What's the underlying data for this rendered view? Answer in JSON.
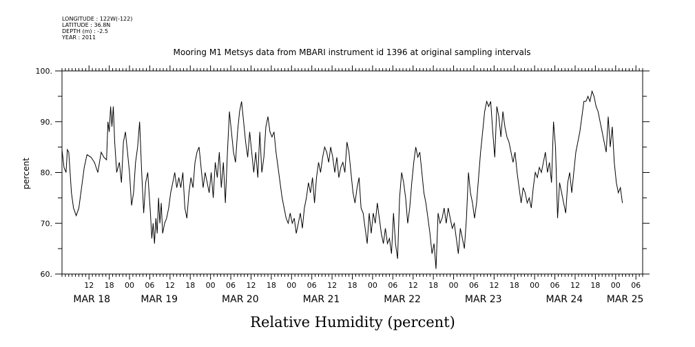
{
  "header": {
    "lines": [
      "LONGITUDE : 122W(-122)",
      "LATITUDE : 36.8N",
      "DEPTH (m) : -2.5",
      "YEAR : 2011"
    ]
  },
  "chart_data": {
    "type": "line",
    "title": "Mooring M1 Metsys data from MBARI instrument id 1396 at original sampling intervals",
    "xlabel": "Relative Humidity (percent)",
    "ylabel": "percent",
    "ylim": [
      60,
      100
    ],
    "yticks": [
      60,
      70,
      80,
      90,
      100
    ],
    "ytick_labels": [
      "60.",
      "70.",
      "80.",
      "90.",
      "100."
    ],
    "xlim_hours": [
      0,
      172
    ],
    "hour_ticks": [
      {
        "h": 8,
        "label": "12"
      },
      {
        "h": 14,
        "label": "18"
      },
      {
        "h": 20,
        "label": "00"
      },
      {
        "h": 26,
        "label": "06"
      },
      {
        "h": 32,
        "label": "12"
      },
      {
        "h": 38,
        "label": "18"
      },
      {
        "h": 44,
        "label": "00"
      },
      {
        "h": 50,
        "label": "06"
      },
      {
        "h": 56,
        "label": "12"
      },
      {
        "h": 62,
        "label": "18"
      },
      {
        "h": 68,
        "label": "00"
      },
      {
        "h": 74,
        "label": "06"
      },
      {
        "h": 80,
        "label": "12"
      },
      {
        "h": 86,
        "label": "18"
      },
      {
        "h": 92,
        "label": "00"
      },
      {
        "h": 98,
        "label": "06"
      },
      {
        "h": 104,
        "label": "12"
      },
      {
        "h": 110,
        "label": "18"
      },
      {
        "h": 116,
        "label": "00"
      },
      {
        "h": 122,
        "label": "06"
      },
      {
        "h": 128,
        "label": "12"
      },
      {
        "h": 134,
        "label": "18"
      },
      {
        "h": 140,
        "label": "00"
      },
      {
        "h": 146,
        "label": "06"
      },
      {
        "h": 152,
        "label": "12"
      },
      {
        "h": 158,
        "label": "18"
      },
      {
        "h": 164,
        "label": "00"
      },
      {
        "h": 170,
        "label": "06"
      }
    ],
    "day_labels": [
      {
        "h": 8,
        "label": "MAR 18"
      },
      {
        "h": 28,
        "label": "MAR 19"
      },
      {
        "h": 52,
        "label": "MAR 20"
      },
      {
        "h": 76,
        "label": "MAR 21"
      },
      {
        "h": 100,
        "label": "MAR 22"
      },
      {
        "h": 124,
        "label": "MAR 23"
      },
      {
        "h": 148,
        "label": "MAR 24"
      },
      {
        "h": 166,
        "label": "MAR 25"
      }
    ],
    "series": [
      {
        "points": [
          [
            0,
            84.5
          ],
          [
            0.6,
            81
          ],
          [
            1.2,
            80
          ],
          [
            1.6,
            84.5
          ],
          [
            2,
            84
          ],
          [
            2.4,
            80
          ],
          [
            2.8,
            76
          ],
          [
            3.4,
            73
          ],
          [
            4.2,
            71.5
          ],
          [
            5,
            73
          ],
          [
            5.8,
            77
          ],
          [
            6.6,
            81
          ],
          [
            7.4,
            83.5
          ],
          [
            8.6,
            83
          ],
          [
            9.6,
            82
          ],
          [
            10.6,
            80
          ],
          [
            11.6,
            84
          ],
          [
            12.4,
            83
          ],
          [
            13.2,
            82.5
          ],
          [
            13.6,
            90
          ],
          [
            14,
            88
          ],
          [
            14.4,
            93
          ],
          [
            14.8,
            89
          ],
          [
            15.2,
            93
          ],
          [
            15.6,
            86
          ],
          [
            16.2,
            80
          ],
          [
            17,
            82
          ],
          [
            17.6,
            78
          ],
          [
            18.2,
            86
          ],
          [
            18.8,
            88
          ],
          [
            19.4,
            84
          ],
          [
            20,
            80
          ],
          [
            20.6,
            73.5
          ],
          [
            21.2,
            76
          ],
          [
            21.8,
            82
          ],
          [
            22.4,
            85
          ],
          [
            23,
            90
          ],
          [
            23.6,
            80
          ],
          [
            24.2,
            72
          ],
          [
            24.8,
            78
          ],
          [
            25.4,
            80
          ],
          [
            25.8,
            76
          ],
          [
            26.2,
            72
          ],
          [
            26.6,
            67
          ],
          [
            27,
            70
          ],
          [
            27.4,
            66
          ],
          [
            27.8,
            71
          ],
          [
            28.2,
            68
          ],
          [
            28.6,
            75
          ],
          [
            29,
            70
          ],
          [
            29.4,
            74
          ],
          [
            29.8,
            68
          ],
          [
            30.4,
            70
          ],
          [
            31,
            71
          ],
          [
            31.6,
            73
          ],
          [
            32.2,
            76
          ],
          [
            32.8,
            78
          ],
          [
            33.4,
            80
          ],
          [
            34,
            77
          ],
          [
            34.6,
            79
          ],
          [
            35.2,
            77
          ],
          [
            35.8,
            80
          ],
          [
            36.4,
            73
          ],
          [
            37,
            71
          ],
          [
            37.6,
            76
          ],
          [
            38.2,
            79
          ],
          [
            38.8,
            77
          ],
          [
            39.4,
            82
          ],
          [
            40,
            84
          ],
          [
            40.6,
            85
          ],
          [
            41.2,
            81
          ],
          [
            41.8,
            77
          ],
          [
            42.4,
            80
          ],
          [
            43,
            78
          ],
          [
            43.6,
            76
          ],
          [
            44.2,
            80
          ],
          [
            44.8,
            75
          ],
          [
            45.4,
            82
          ],
          [
            46,
            79
          ],
          [
            46.6,
            84
          ],
          [
            47.2,
            77
          ],
          [
            47.8,
            82
          ],
          [
            48.4,
            74
          ],
          [
            49,
            84
          ],
          [
            49.6,
            92
          ],
          [
            50.2,
            88
          ],
          [
            50.8,
            84
          ],
          [
            51.4,
            82
          ],
          [
            52,
            88
          ],
          [
            52.6,
            92
          ],
          [
            53.2,
            94
          ],
          [
            53.8,
            90
          ],
          [
            54.4,
            86
          ],
          [
            55,
            83
          ],
          [
            55.6,
            88
          ],
          [
            56.2,
            84
          ],
          [
            56.8,
            80
          ],
          [
            57.4,
            84
          ],
          [
            58,
            79
          ],
          [
            58.6,
            88
          ],
          [
            59.2,
            80
          ],
          [
            59.8,
            83
          ],
          [
            60.4,
            89
          ],
          [
            61,
            91
          ],
          [
            61.6,
            88
          ],
          [
            62.2,
            87
          ],
          [
            62.8,
            88
          ],
          [
            63.4,
            84
          ],
          [
            64,
            81
          ],
          [
            64.6,
            78
          ],
          [
            65.2,
            75
          ],
          [
            65.8,
            73
          ],
          [
            66.4,
            71
          ],
          [
            67,
            70
          ],
          [
            67.6,
            72
          ],
          [
            68.2,
            70
          ],
          [
            68.8,
            71
          ],
          [
            69.4,
            68
          ],
          [
            70,
            70
          ],
          [
            70.6,
            72
          ],
          [
            71.2,
            69
          ],
          [
            71.8,
            73
          ],
          [
            72.4,
            75
          ],
          [
            73,
            78
          ],
          [
            73.6,
            76
          ],
          [
            74.2,
            79
          ],
          [
            74.8,
            74
          ],
          [
            75.4,
            79
          ],
          [
            76,
            82
          ],
          [
            76.6,
            80
          ],
          [
            77.2,
            83
          ],
          [
            77.8,
            85
          ],
          [
            78.4,
            84
          ],
          [
            79,
            82
          ],
          [
            79.6,
            85
          ],
          [
            80.2,
            83
          ],
          [
            80.8,
            80
          ],
          [
            81.4,
            83
          ],
          [
            82,
            79
          ],
          [
            82.6,
            81
          ],
          [
            83.2,
            82
          ],
          [
            83.8,
            80
          ],
          [
            84.4,
            86
          ],
          [
            85,
            84
          ],
          [
            85.6,
            80
          ],
          [
            86.2,
            76
          ],
          [
            86.8,
            74
          ],
          [
            87.4,
            77
          ],
          [
            88,
            79
          ],
          [
            88.6,
            73
          ],
          [
            89.2,
            72
          ],
          [
            89.8,
            69
          ],
          [
            90.4,
            66
          ],
          [
            91,
            72
          ],
          [
            91.6,
            68
          ],
          [
            92.2,
            72
          ],
          [
            92.8,
            70
          ],
          [
            93.4,
            74
          ],
          [
            94,
            71
          ],
          [
            94.6,
            68
          ],
          [
            95.2,
            66
          ],
          [
            95.8,
            69
          ],
          [
            96.4,
            66
          ],
          [
            97,
            67
          ],
          [
            97.6,
            64
          ],
          [
            98.2,
            72
          ],
          [
            98.8,
            66
          ],
          [
            99.4,
            63
          ],
          [
            100,
            75
          ],
          [
            100.6,
            80
          ],
          [
            101.2,
            78
          ],
          [
            101.8,
            75
          ],
          [
            102.4,
            70
          ],
          [
            103,
            73
          ],
          [
            103.6,
            78
          ],
          [
            104.2,
            82
          ],
          [
            104.8,
            85
          ],
          [
            105.4,
            83
          ],
          [
            106,
            84
          ],
          [
            106.6,
            80
          ],
          [
            107.2,
            76
          ],
          [
            107.8,
            74
          ],
          [
            108.4,
            71
          ],
          [
            109,
            68
          ],
          [
            109.6,
            64
          ],
          [
            110.2,
            66
          ],
          [
            110.8,
            61
          ],
          [
            111.4,
            72
          ],
          [
            112,
            70
          ],
          [
            112.6,
            71
          ],
          [
            113.2,
            73
          ],
          [
            113.8,
            70
          ],
          [
            114.4,
            73
          ],
          [
            115,
            71
          ],
          [
            115.6,
            69
          ],
          [
            116.2,
            70
          ],
          [
            116.8,
            67
          ],
          [
            117.4,
            64
          ],
          [
            118,
            69
          ],
          [
            118.6,
            67
          ],
          [
            119.2,
            65
          ],
          [
            119.8,
            71
          ],
          [
            120.4,
            80
          ],
          [
            121,
            76
          ],
          [
            121.6,
            74
          ],
          [
            122.2,
            71
          ],
          [
            122.8,
            74
          ],
          [
            123.4,
            79
          ],
          [
            124,
            84
          ],
          [
            124.6,
            88
          ],
          [
            125.2,
            92
          ],
          [
            125.8,
            94
          ],
          [
            126.4,
            93
          ],
          [
            127,
            94
          ],
          [
            127.6,
            88
          ],
          [
            128.2,
            83
          ],
          [
            128.8,
            93
          ],
          [
            129.4,
            91
          ],
          [
            130,
            87
          ],
          [
            130.6,
            92
          ],
          [
            131.2,
            89
          ],
          [
            131.8,
            87
          ],
          [
            132.4,
            86
          ],
          [
            133,
            84
          ],
          [
            133.6,
            82
          ],
          [
            134.2,
            84
          ],
          [
            134.8,
            80
          ],
          [
            135.4,
            77
          ],
          [
            136,
            74
          ],
          [
            136.6,
            77
          ],
          [
            137.2,
            76
          ],
          [
            137.8,
            74
          ],
          [
            138.4,
            75
          ],
          [
            139,
            73
          ],
          [
            139.6,
            77
          ],
          [
            140.2,
            80
          ],
          [
            140.8,
            79
          ],
          [
            141.4,
            81
          ],
          [
            142,
            80
          ],
          [
            142.6,
            82
          ],
          [
            143.2,
            84
          ],
          [
            143.8,
            80
          ],
          [
            144.4,
            82
          ],
          [
            145,
            78
          ],
          [
            145.6,
            90
          ],
          [
            146.2,
            85
          ],
          [
            146.8,
            71
          ],
          [
            147.4,
            78
          ],
          [
            148,
            76
          ],
          [
            148.6,
            74
          ],
          [
            149.2,
            72
          ],
          [
            149.8,
            78
          ],
          [
            150.4,
            80
          ],
          [
            151,
            76
          ],
          [
            151.6,
            80
          ],
          [
            152.2,
            84
          ],
          [
            152.8,
            86
          ],
          [
            153.4,
            88
          ],
          [
            154,
            91
          ],
          [
            154.6,
            94
          ],
          [
            155.2,
            94
          ],
          [
            155.8,
            95
          ],
          [
            156.4,
            94
          ],
          [
            157,
            96
          ],
          [
            157.6,
            95
          ],
          [
            158.2,
            93
          ],
          [
            158.8,
            92
          ],
          [
            159.4,
            90
          ],
          [
            160,
            88
          ],
          [
            160.6,
            86
          ],
          [
            161.2,
            84
          ],
          [
            161.8,
            91
          ],
          [
            162.4,
            85
          ],
          [
            163,
            89
          ],
          [
            163.6,
            82
          ],
          [
            164.2,
            78
          ],
          [
            164.8,
            76
          ],
          [
            165.4,
            77
          ],
          [
            166,
            74
          ]
        ]
      }
    ],
    "line_color": "#000000"
  }
}
